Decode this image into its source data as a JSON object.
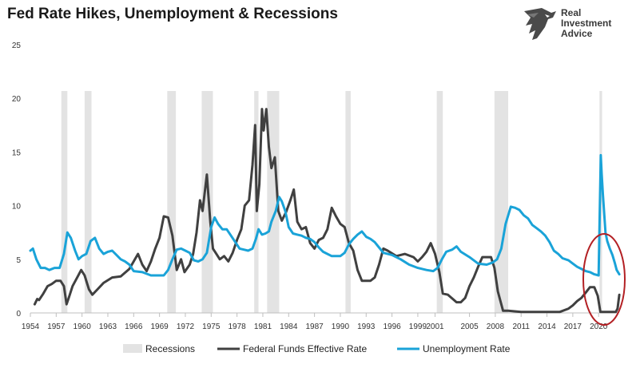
{
  "title": "Fed Rate Hikes, Unemployment & Recessions",
  "logo": {
    "line1": "Real",
    "line2": "Investment",
    "line3": "Advice"
  },
  "colors": {
    "recession": "#e3e3e3",
    "fed": "#404040",
    "unemployment": "#1aa3d8",
    "circle": "#b32024"
  },
  "chart_data": {
    "type": "line",
    "xlim": [
      1954,
      2022.3
    ],
    "ylim": [
      0,
      25
    ],
    "yticks": [
      0,
      5,
      10,
      15,
      20,
      25
    ],
    "xticks": [
      1954,
      1957,
      1960,
      1963,
      1966,
      1969,
      1972,
      1975,
      1978,
      1981,
      1984,
      1987,
      1990,
      1993,
      1996,
      1999,
      2001,
      2005,
      2008,
      2011,
      2014,
      2017,
      2020
    ],
    "grid": false,
    "legend_position": "bottom",
    "recessions": [
      [
        1957.6,
        1958.3
      ],
      [
        1960.3,
        1961.1
      ],
      [
        1969.9,
        1970.9
      ],
      [
        1973.9,
        1975.2
      ],
      [
        1980.0,
        1980.5
      ],
      [
        1981.5,
        1982.9
      ],
      [
        1990.6,
        1991.2
      ],
      [
        2001.2,
        2001.9
      ],
      [
        2007.9,
        2009.5
      ],
      [
        2020.1,
        2020.4
      ]
    ],
    "series": [
      {
        "name": "Federal Funds Effective Rate",
        "x": [
          1954.5,
          1954.8,
          1955.0,
          1955.5,
          1956.0,
          1956.5,
          1957.0,
          1957.5,
          1957.9,
          1958.2,
          1958.5,
          1958.9,
          1959.5,
          1959.9,
          1960.3,
          1960.8,
          1961.2,
          1961.8,
          1962.5,
          1963.5,
          1964.5,
          1965.5,
          1966.0,
          1966.5,
          1967.0,
          1967.5,
          1968.0,
          1968.5,
          1969.0,
          1969.5,
          1970.0,
          1970.5,
          1971.0,
          1971.5,
          1971.9,
          1972.5,
          1972.9,
          1973.3,
          1973.7,
          1974.0,
          1974.5,
          1974.9,
          1975.2,
          1975.6,
          1976.0,
          1976.5,
          1977.0,
          1977.5,
          1978.0,
          1978.5,
          1978.9,
          1979.4,
          1979.8,
          1980.1,
          1980.3,
          1980.6,
          1980.9,
          1981.1,
          1981.4,
          1981.7,
          1982.0,
          1982.4,
          1982.8,
          1983.2,
          1983.7,
          1984.2,
          1984.6,
          1985.0,
          1985.5,
          1986.0,
          1986.5,
          1987.0,
          1987.5,
          1988.0,
          1988.5,
          1989.0,
          1989.5,
          1990.0,
          1990.5,
          1991.0,
          1991.5,
          1992.0,
          1992.5,
          1993.5,
          1994.0,
          1994.5,
          1995.0,
          1995.5,
          1996.5,
          1997.5,
          1998.5,
          1999.0,
          1999.5,
          2000.0,
          2000.5,
          2001.0,
          2001.5,
          2001.9,
          2002.5,
          2003.5,
          2004.0,
          2004.5,
          2005.0,
          2005.5,
          2006.0,
          2006.5,
          2007.5,
          2007.9,
          2008.3,
          2008.9,
          2009.5,
          2011.0,
          2013.0,
          2015.5,
          2016.5,
          2017.0,
          2017.5,
          2018.0,
          2018.5,
          2019.0,
          2019.5,
          2019.9,
          2020.2,
          2020.5,
          2021.0,
          2021.5,
          2022.0,
          2022.2,
          2022.4
        ],
        "y": [
          0.8,
          1.3,
          1.2,
          1.8,
          2.5,
          2.7,
          3.0,
          3.0,
          2.5,
          0.8,
          1.5,
          2.5,
          3.4,
          4.0,
          3.5,
          2.2,
          1.7,
          2.2,
          2.8,
          3.3,
          3.4,
          4.1,
          4.8,
          5.5,
          4.5,
          3.9,
          4.8,
          6.0,
          7.0,
          9.0,
          8.9,
          7.2,
          4.0,
          5.0,
          3.8,
          4.5,
          5.5,
          7.5,
          10.5,
          9.5,
          12.9,
          8.5,
          6.0,
          5.5,
          5.0,
          5.3,
          4.8,
          5.6,
          6.8,
          7.8,
          10.0,
          10.5,
          13.8,
          17.5,
          9.5,
          12.0,
          19.0,
          17.0,
          19.0,
          15.5,
          13.5,
          14.5,
          9.5,
          8.6,
          9.4,
          10.5,
          11.5,
          8.5,
          7.8,
          8.0,
          6.5,
          6.0,
          6.8,
          7.0,
          7.8,
          9.8,
          9.0,
          8.3,
          8.0,
          6.5,
          5.8,
          4.0,
          3.0,
          3.0,
          3.3,
          4.5,
          6.0,
          5.8,
          5.3,
          5.5,
          5.2,
          4.8,
          5.2,
          5.7,
          6.5,
          5.5,
          3.8,
          1.8,
          1.7,
          1.0,
          1.0,
          1.4,
          2.5,
          3.3,
          4.3,
          5.2,
          5.2,
          4.2,
          2.0,
          0.2,
          0.2,
          0.1,
          0.1,
          0.1,
          0.4,
          0.7,
          1.1,
          1.4,
          1.9,
          2.4,
          2.4,
          1.6,
          0.1,
          0.1,
          0.1,
          0.1,
          0.1,
          0.4,
          1.7
        ]
      },
      {
        "name": "Unemployment Rate",
        "x": [
          1954.0,
          1954.3,
          1954.7,
          1955.2,
          1955.7,
          1956.2,
          1956.8,
          1957.4,
          1957.9,
          1958.3,
          1958.7,
          1959.2,
          1959.6,
          1960.0,
          1960.5,
          1961.0,
          1961.5,
          1962.0,
          1962.5,
          1963.0,
          1963.5,
          1964.0,
          1964.5,
          1965.0,
          1965.5,
          1966.0,
          1967.0,
          1968.0,
          1969.0,
          1969.5,
          1970.0,
          1970.5,
          1971.0,
          1971.5,
          1972.0,
          1972.5,
          1973.0,
          1973.5,
          1974.0,
          1974.5,
          1975.0,
          1975.4,
          1975.8,
          1976.3,
          1976.8,
          1977.3,
          1977.8,
          1978.3,
          1978.8,
          1979.3,
          1979.8,
          1980.2,
          1980.5,
          1980.9,
          1981.3,
          1981.7,
          1982.0,
          1982.5,
          1982.9,
          1983.2,
          1983.6,
          1984.0,
          1984.5,
          1985.0,
          1985.5,
          1986.0,
          1986.5,
          1987.0,
          1987.5,
          1988.0,
          1988.5,
          1989.0,
          1989.5,
          1990.0,
          1990.5,
          1991.0,
          1991.5,
          1992.0,
          1992.5,
          1993.0,
          1993.5,
          1994.0,
          1994.5,
          1995.0,
          1996.0,
          1997.0,
          1998.0,
          1999.0,
          2000.0,
          2000.8,
          2001.3,
          2001.8,
          2002.3,
          2003.0,
          2003.5,
          2004.0,
          2005.0,
          2006.0,
          2007.0,
          2007.7,
          2008.2,
          2008.7,
          2009.2,
          2009.8,
          2010.3,
          2010.8,
          2011.3,
          2011.8,
          2012.3,
          2012.8,
          2013.3,
          2013.8,
          2014.3,
          2014.8,
          2015.3,
          2015.8,
          2016.5,
          2017.0,
          2017.5,
          2018.0,
          2018.5,
          2019.0,
          2019.5,
          2020.0,
          2020.25,
          2020.35,
          2020.5,
          2020.8,
          2021.0,
          2021.3,
          2021.6,
          2021.9,
          2022.1,
          2022.4
        ],
        "y": [
          5.8,
          6.0,
          5.0,
          4.2,
          4.2,
          4.0,
          4.2,
          4.2,
          5.5,
          7.5,
          7.0,
          5.8,
          5.0,
          5.3,
          5.5,
          6.7,
          7.0,
          6.0,
          5.5,
          5.7,
          5.8,
          5.4,
          5.0,
          4.8,
          4.5,
          3.9,
          3.8,
          3.5,
          3.5,
          3.5,
          4.0,
          5.0,
          5.9,
          6.0,
          5.8,
          5.6,
          4.9,
          4.8,
          5.0,
          5.6,
          8.0,
          8.9,
          8.3,
          7.8,
          7.8,
          7.2,
          6.6,
          6.0,
          5.9,
          5.8,
          6.0,
          6.9,
          7.8,
          7.3,
          7.4,
          7.6,
          8.5,
          9.5,
          10.8,
          10.4,
          9.5,
          8.0,
          7.4,
          7.3,
          7.2,
          7.0,
          6.9,
          6.6,
          6.1,
          5.7,
          5.5,
          5.3,
          5.3,
          5.3,
          5.6,
          6.4,
          6.9,
          7.3,
          7.6,
          7.1,
          6.9,
          6.6,
          6.1,
          5.6,
          5.4,
          5.0,
          4.5,
          4.2,
          4.0,
          3.9,
          4.2,
          5.0,
          5.7,
          5.9,
          6.2,
          5.7,
          5.2,
          4.6,
          4.5,
          4.7,
          5.0,
          6.0,
          8.3,
          9.9,
          9.8,
          9.6,
          9.1,
          8.8,
          8.2,
          7.9,
          7.6,
          7.2,
          6.6,
          5.8,
          5.5,
          5.1,
          4.9,
          4.6,
          4.3,
          4.1,
          3.9,
          3.8,
          3.6,
          3.5,
          14.7,
          13.0,
          11.0,
          7.5,
          6.7,
          6.0,
          5.4,
          4.6,
          4.0,
          3.6
        ]
      }
    ],
    "legend": [
      "Recessions",
      "Federal Funds Effective Rate",
      "Unemployment Rate"
    ]
  }
}
